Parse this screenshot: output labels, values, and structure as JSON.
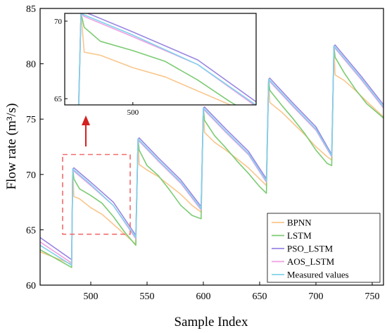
{
  "chart_data": {
    "type": "line",
    "xlabel": "Sample Index",
    "ylabel": "Flow rate (m³/s)",
    "xlim": [
      455,
      760
    ],
    "ylim": [
      60,
      85
    ],
    "x_ticks": [
      500,
      550,
      600,
      650,
      700,
      750
    ],
    "y_ticks": [
      60,
      65,
      70,
      75,
      80,
      85
    ],
    "grid": false,
    "legend_position": "bottom-right",
    "segments": [
      {
        "start": 484,
        "end": 540,
        "prev_end": 455
      },
      {
        "start": 542,
        "end": 598
      },
      {
        "start": 600,
        "end": 656
      },
      {
        "start": 658,
        "end": 714
      },
      {
        "start": 716,
        "end": 760
      }
    ],
    "series": [
      {
        "name": "BPNN",
        "color": "#f9c68c",
        "pre": [
          63.0,
          61.9
        ],
        "segments": [
          [
            [
              484,
              70.5
            ],
            [
              485,
              68.0
            ],
            [
              490,
              67.8
            ],
            [
              500,
              67.0
            ],
            [
              510,
              66.4
            ],
            [
              520,
              65.5
            ],
            [
              530,
              64.6
            ],
            [
              540,
              63.7
            ]
          ],
          [
            [
              542,
              73.2
            ],
            [
              543,
              70.9
            ],
            [
              550,
              70.4
            ],
            [
              560,
              69.8
            ],
            [
              570,
              69.0
            ],
            [
              580,
              68.2
            ],
            [
              590,
              67.2
            ],
            [
              598,
              66.6
            ]
          ],
          [
            [
              600,
              76.0
            ],
            [
              601,
              73.8
            ],
            [
              610,
              72.9
            ],
            [
              620,
              72.2
            ],
            [
              630,
              71.4
            ],
            [
              640,
              70.6
            ],
            [
              650,
              69.6
            ],
            [
              656,
              69.0
            ]
          ],
          [
            [
              658,
              78.6
            ],
            [
              659,
              76.5
            ],
            [
              670,
              75.6
            ],
            [
              680,
              74.6
            ],
            [
              690,
              73.6
            ],
            [
              700,
              72.5
            ],
            [
              710,
              71.6
            ],
            [
              714,
              71.3
            ]
          ],
          [
            [
              716,
              81.6
            ],
            [
              717,
              79.0
            ],
            [
              725,
              78.5
            ],
            [
              735,
              77.6
            ],
            [
              745,
              76.6
            ],
            [
              760,
              75.2
            ]
          ]
        ]
      },
      {
        "name": "LSTM",
        "color": "#7ccb73",
        "pre": [
          63.2,
          61.6
        ],
        "segments": [
          [
            [
              484,
              70.5
            ],
            [
              485,
              69.6
            ],
            [
              490,
              68.7
            ],
            [
              500,
              68.1
            ],
            [
              510,
              67.4
            ],
            [
              520,
              66.2
            ],
            [
              530,
              64.8
            ],
            [
              540,
              63.6
            ]
          ],
          [
            [
              542,
              73.2
            ],
            [
              543,
              72.2
            ],
            [
              550,
              70.8
            ],
            [
              560,
              69.9
            ],
            [
              570,
              68.6
            ],
            [
              580,
              67.2
            ],
            [
              590,
              66.3
            ],
            [
              598,
              66.0
            ]
          ],
          [
            [
              600,
              76.0
            ],
            [
              601,
              74.9
            ],
            [
              610,
              73.5
            ],
            [
              620,
              72.4
            ],
            [
              630,
              71.2
            ],
            [
              640,
              70.1
            ],
            [
              650,
              68.9
            ],
            [
              656,
              68.3
            ]
          ],
          [
            [
              658,
              78.6
            ],
            [
              659,
              77.6
            ],
            [
              670,
              76.2
            ],
            [
              680,
              75.0
            ],
            [
              690,
              73.7
            ],
            [
              700,
              72.2
            ],
            [
              710,
              71.0
            ],
            [
              714,
              70.8
            ]
          ],
          [
            [
              716,
              81.6
            ],
            [
              717,
              80.6
            ],
            [
              725,
              79.2
            ],
            [
              735,
              77.7
            ],
            [
              745,
              76.4
            ],
            [
              760,
              75.1
            ]
          ]
        ]
      },
      {
        "name": "PSO_LSTM",
        "color": "#9b86e2",
        "pre": [
          64.3,
          62.3
        ],
        "segments": [
          [
            [
              484,
              70.5
            ],
            [
              485,
              70.6
            ],
            [
              500,
              69.3
            ],
            [
              520,
              67.5
            ],
            [
              540,
              64.5
            ]
          ],
          [
            [
              542,
              73.2
            ],
            [
              543,
              73.3
            ],
            [
              560,
              71.5
            ],
            [
              580,
              69.5
            ],
            [
              598,
              67.1
            ]
          ],
          [
            [
              600,
              76.0
            ],
            [
              601,
              76.1
            ],
            [
              620,
              74.1
            ],
            [
              640,
              72.1
            ],
            [
              656,
              69.6
            ]
          ],
          [
            [
              658,
              78.6
            ],
            [
              659,
              78.7
            ],
            [
              680,
              76.4
            ],
            [
              700,
              74.3
            ],
            [
              714,
              71.8
            ]
          ],
          [
            [
              716,
              81.6
            ],
            [
              717,
              81.7
            ],
            [
              740,
              78.9
            ],
            [
              760,
              76.3
            ]
          ]
        ]
      },
      {
        "name": "AOS_LSTM",
        "color": "#ef9fe4",
        "pre": [
          63.9,
          62.0
        ],
        "segments": [
          [
            [
              484,
              70.5
            ],
            [
              485,
              70.3
            ],
            [
              500,
              69.0
            ],
            [
              520,
              67.2
            ],
            [
              540,
              64.2
            ]
          ],
          [
            [
              542,
              73.2
            ],
            [
              543,
              73.0
            ],
            [
              560,
              71.2
            ],
            [
              580,
              69.2
            ],
            [
              598,
              66.8
            ]
          ],
          [
            [
              600,
              76.0
            ],
            [
              601,
              75.8
            ],
            [
              620,
              73.8
            ],
            [
              640,
              71.8
            ],
            [
              656,
              69.3
            ]
          ],
          [
            [
              658,
              78.6
            ],
            [
              659,
              78.4
            ],
            [
              680,
              76.1
            ],
            [
              700,
              74.0
            ],
            [
              714,
              71.6
            ]
          ],
          [
            [
              716,
              81.6
            ],
            [
              717,
              81.4
            ],
            [
              740,
              78.6
            ],
            [
              760,
              76.0
            ]
          ]
        ]
      },
      {
        "name": "Measured values",
        "color": "#7fd3ec",
        "pre": [
          63.6,
          61.8
        ],
        "segments": [
          [
            [
              484,
              70.5
            ],
            [
              485,
              70.4
            ],
            [
              500,
              69.1
            ],
            [
              520,
              67.2
            ],
            [
              540,
              64.3
            ]
          ],
          [
            [
              542,
              73.2
            ],
            [
              543,
              73.1
            ],
            [
              560,
              71.3
            ],
            [
              580,
              69.3
            ],
            [
              598,
              66.9
            ]
          ],
          [
            [
              600,
              76.0
            ],
            [
              601,
              75.9
            ],
            [
              620,
              73.9
            ],
            [
              640,
              71.9
            ],
            [
              656,
              69.4
            ]
          ],
          [
            [
              658,
              78.6
            ],
            [
              659,
              78.5
            ],
            [
              680,
              76.2
            ],
            [
              700,
              74.1
            ],
            [
              714,
              71.7
            ]
          ],
          [
            [
              716,
              81.6
            ],
            [
              717,
              81.5
            ],
            [
              740,
              78.7
            ],
            [
              760,
              76.1
            ]
          ]
        ]
      }
    ],
    "highlight_box": {
      "x": [
        475,
        535
      ],
      "y": [
        64.6,
        71.8
      ]
    },
    "inset": {
      "xlim": [
        479,
        538
      ],
      "ylim": [
        64.6,
        70.5
      ],
      "x_ticks": [
        500
      ],
      "y_ticks": [
        65,
        70
      ],
      "source_segment": 0
    }
  }
}
